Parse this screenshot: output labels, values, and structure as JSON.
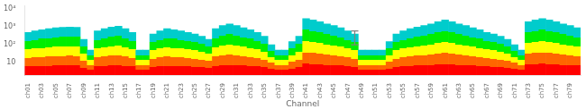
{
  "chart_data": {
    "type": "bar",
    "xlabel": "Channel",
    "categories": [
      "ch01",
      null,
      "ch03",
      null,
      "ch05",
      null,
      "ch07",
      null,
      "ch09",
      null,
      "ch11",
      null,
      "ch13",
      null,
      "ch15",
      null,
      "ch17",
      null,
      "ch19",
      null,
      "ch21",
      null,
      "ch23",
      null,
      "ch25",
      null,
      "ch27",
      null,
      "ch29",
      null,
      "ch31",
      null,
      "ch33",
      null,
      "ch35",
      null,
      "ch37",
      null,
      "ch39",
      null,
      "ch41",
      null,
      "ch43",
      null,
      "ch45",
      null,
      "ch47",
      null,
      "ch49",
      null,
      "ch51",
      null,
      "ch53",
      null,
      "ch55",
      null,
      "ch57",
      null,
      "ch59",
      null,
      "ch61",
      null,
      "ch63",
      null,
      "ch65",
      null,
      "ch67",
      null,
      "ch69",
      null,
      "ch71",
      null,
      "ch73",
      null,
      "ch75",
      null,
      "ch77",
      null,
      "ch79",
      null
    ],
    "values": [
      500,
      600,
      700,
      800,
      900,
      950,
      1000,
      950,
      200,
      50,
      600,
      800,
      1000,
      1100,
      800,
      500,
      50,
      50,
      400,
      600,
      800,
      700,
      600,
      500,
      400,
      300,
      200,
      800,
      1200,
      1500,
      1200,
      900,
      700,
      500,
      300,
      100,
      50,
      50,
      150,
      300,
      3000,
      2500,
      2000,
      1500,
      1200,
      900,
      600,
      400,
      50,
      50,
      50,
      50,
      150,
      400,
      600,
      800,
      1000,
      1200,
      1500,
      2000,
      2500,
      2000,
      1500,
      1200,
      900,
      700,
      500,
      400,
      300,
      200,
      100,
      50,
      2000,
      2500,
      3000,
      2500,
      2000,
      1500,
      1200,
      900
    ],
    "color": [
      "#ff0000",
      "#ff6600",
      "#ffff00",
      "#00ee00",
      "#00cccc"
    ],
    "log": "y",
    "ylim": [
      2,
      15000
    ],
    "yticks": [
      10,
      {
        "value": 100,
        "label": "10²"
      },
      {
        "value": 1000,
        "label": "10³"
      },
      {
        "value": 10000,
        "label": "10⁴"
      }
    ],
    "grid": false,
    "error_bar": {
      "index": 47,
      "value": 350,
      "error": 250
    }
  }
}
